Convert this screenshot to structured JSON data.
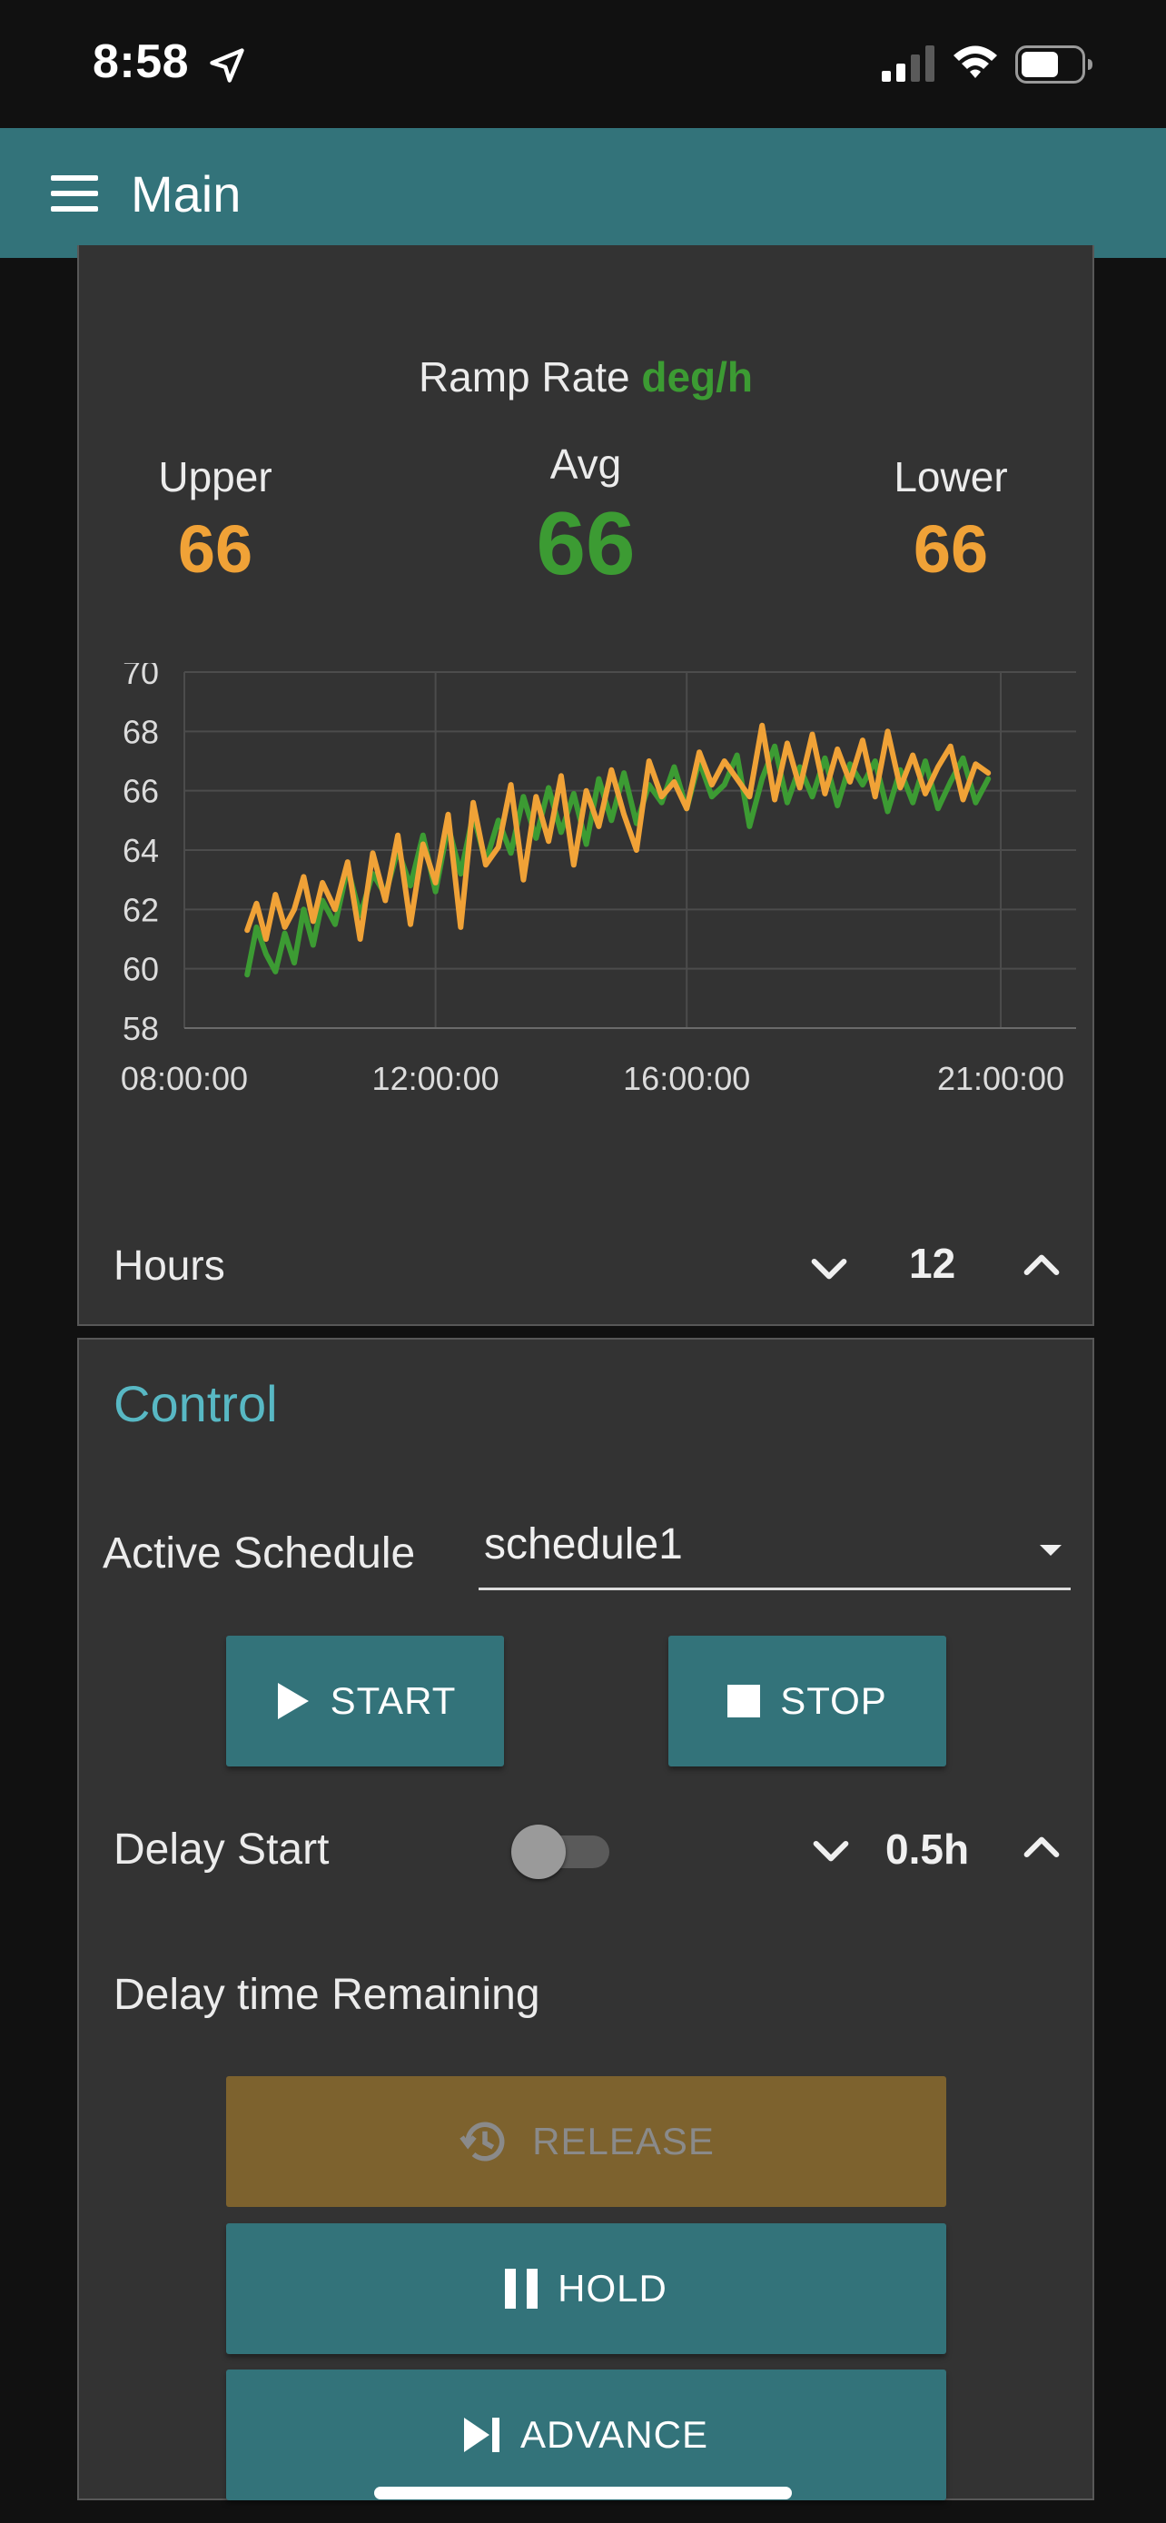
{
  "status_bar": {
    "time": "8:58",
    "icons": [
      "location-arrow-icon",
      "signal-icon",
      "wifi-icon",
      "battery-icon"
    ]
  },
  "header": {
    "title": "Main",
    "menu_icon": "hamburger-menu-icon"
  },
  "summary": {
    "ramp_label": "Ramp Rate",
    "ramp_unit": "deg/h",
    "upper_label": "Upper",
    "upper_value": "66",
    "avg_label": "Avg",
    "avg_value": "66",
    "lower_label": "Lower",
    "lower_value": "66"
  },
  "chart_data": {
    "type": "line",
    "title": "",
    "xlabel": "",
    "ylabel": "",
    "x_tick_labels": [
      "08:00:00",
      "12:00:00",
      "16:00:00",
      "21:00:00"
    ],
    "x_tick_hours": [
      8,
      12,
      16,
      21
    ],
    "xlim_hours": [
      8,
      22.2
    ],
    "y_ticks": [
      58,
      60,
      62,
      64,
      66,
      68,
      70
    ],
    "ylim": [
      58,
      70
    ],
    "grid": true,
    "colors": [
      "#3c9b33",
      "#f0a237"
    ],
    "series": [
      {
        "color": "#3c9b33",
        "x_hours": [
          9,
          9.15,
          9.3,
          9.45,
          9.6,
          9.75,
          9.9,
          10.05,
          10.2,
          10.4,
          10.6,
          10.8,
          11.0,
          11.2,
          11.4,
          11.6,
          11.8,
          12.0,
          12.2,
          12.4,
          12.6,
          12.8,
          13.0,
          13.2,
          13.4,
          13.6,
          13.8,
          14.0,
          14.2,
          14.4,
          14.6,
          14.8,
          15.0,
          15.2,
          15.4,
          15.6,
          15.8,
          16.0,
          16.2,
          16.4,
          16.6,
          16.8,
          17.0,
          17.2,
          17.4,
          17.6,
          17.8,
          18.0,
          18.2,
          18.4,
          18.6,
          18.8,
          19.0,
          19.2,
          19.4,
          19.6,
          19.8,
          20.0,
          20.2,
          20.4,
          20.6,
          20.8
        ],
        "values": [
          59.8,
          61.4,
          60.5,
          59.9,
          61.2,
          60.2,
          62.0,
          60.8,
          62.3,
          61.5,
          63.4,
          61.8,
          63.2,
          62.5,
          64.0,
          62.8,
          64.5,
          62.6,
          64.8,
          63.2,
          65.2,
          63.6,
          65.0,
          63.9,
          65.8,
          64.4,
          66.1,
          64.6,
          65.9,
          64.2,
          66.4,
          65.0,
          66.6,
          64.9,
          66.2,
          65.6,
          66.8,
          65.4,
          67.0,
          65.8,
          66.2,
          67.2,
          64.8,
          66.4,
          67.5,
          65.6,
          66.8,
          65.8,
          67.1,
          65.5,
          66.9,
          66.2,
          67.0,
          65.3,
          66.7,
          65.6,
          67.0,
          65.4,
          66.3,
          67.1,
          65.6,
          66.4
        ]
      },
      {
        "color": "#f0a237",
        "x_hours": [
          9,
          9.15,
          9.3,
          9.45,
          9.6,
          9.75,
          9.9,
          10.05,
          10.2,
          10.4,
          10.6,
          10.8,
          11.0,
          11.2,
          11.4,
          11.6,
          11.8,
          12.0,
          12.2,
          12.4,
          12.6,
          12.8,
          13.0,
          13.2,
          13.4,
          13.6,
          13.8,
          14.0,
          14.2,
          14.4,
          14.6,
          14.8,
          15.0,
          15.2,
          15.4,
          15.6,
          15.8,
          16.0,
          16.2,
          16.4,
          16.6,
          16.8,
          17.0,
          17.2,
          17.4,
          17.6,
          17.8,
          18.0,
          18.2,
          18.4,
          18.6,
          18.8,
          19.0,
          19.2,
          19.4,
          19.6,
          19.8,
          20.0,
          20.2,
          20.4,
          20.6,
          20.8
        ],
        "values": [
          61.3,
          62.2,
          61.0,
          62.5,
          61.4,
          62.0,
          63.1,
          61.6,
          62.9,
          62.0,
          63.6,
          61.0,
          63.9,
          62.3,
          64.5,
          61.5,
          64.2,
          62.9,
          65.2,
          61.4,
          65.6,
          63.5,
          64.1,
          66.2,
          63.0,
          65.8,
          64.3,
          66.5,
          63.5,
          66.0,
          64.8,
          66.7,
          65.2,
          64.0,
          67.0,
          65.8,
          66.3,
          65.4,
          67.3,
          66.2,
          67.0,
          66.4,
          65.8,
          68.2,
          65.7,
          67.6,
          66.1,
          67.9,
          65.9,
          67.4,
          66.3,
          67.7,
          65.8,
          68.0,
          66.1,
          67.2,
          65.9,
          66.8,
          67.5,
          65.7,
          66.9,
          66.6
        ]
      }
    ]
  },
  "hours": {
    "label": "Hours",
    "value": "12"
  },
  "control": {
    "title": "Control",
    "schedule_label": "Active Schedule",
    "schedule_value": "schedule1",
    "start_label": "START",
    "stop_label": "STOP",
    "delay_label": "Delay Start",
    "delay_toggle_on": false,
    "delay_value": "0.5h",
    "remaining_label": "Delay time Remaining",
    "release_label": "RELEASE",
    "hold_label": "HOLD",
    "advance_label": "ADVANCE"
  }
}
